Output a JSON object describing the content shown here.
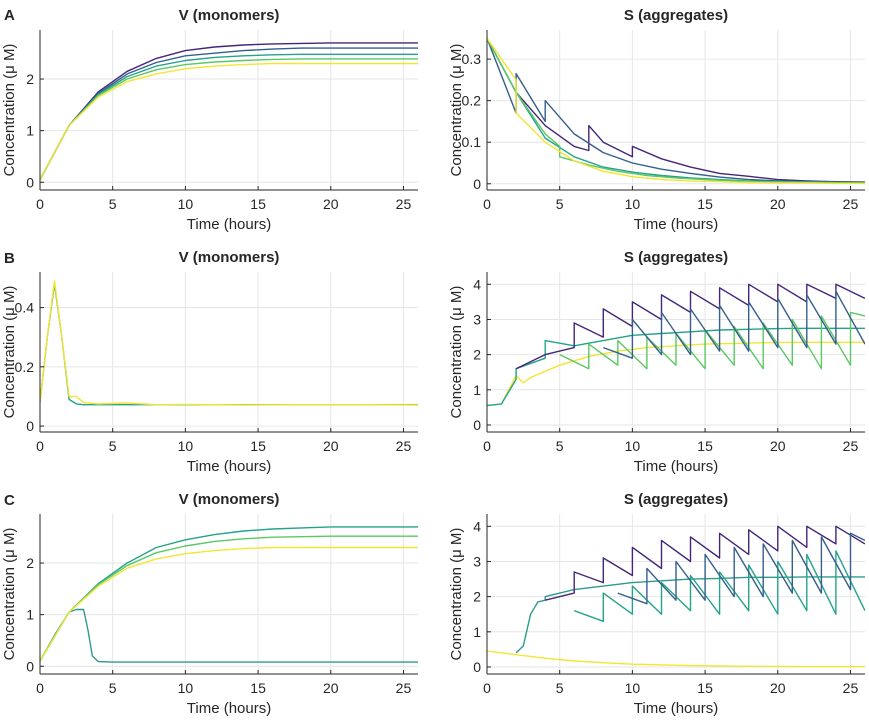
{
  "panel_letters": [
    "A",
    "B",
    "C"
  ],
  "colors": {
    "yellow": "#f2e533",
    "teal": "#24a38a",
    "seagreen": "#2d9b8c",
    "blue": "#355f8d",
    "purple": "#44257a",
    "green": "#5cc863"
  },
  "chart_data": [
    {
      "panel": "A",
      "type": "line",
      "title": "V (monomers)",
      "xlabel": "Time (hours)",
      "ylabel": "Concentration (μ M)",
      "xlim": [
        0,
        26
      ],
      "ylim": [
        -0.15,
        2.95
      ],
      "xticks": [
        0,
        5,
        10,
        15,
        20,
        25
      ],
      "yticks": [
        0,
        1,
        2
      ],
      "grid": true,
      "series": [
        {
          "color": "#44257a",
          "x": [
            0,
            2,
            4,
            6,
            8,
            10,
            12,
            14,
            16,
            18,
            20,
            22,
            24,
            26
          ],
          "y": [
            0.05,
            1.1,
            1.75,
            2.15,
            2.4,
            2.55,
            2.62,
            2.66,
            2.68,
            2.69,
            2.7,
            2.7,
            2.7,
            2.7
          ]
        },
        {
          "color": "#355f8d",
          "x": [
            0,
            2,
            4,
            6,
            8,
            10,
            12,
            14,
            16,
            18,
            20,
            22,
            24,
            26
          ],
          "y": [
            0.05,
            1.1,
            1.72,
            2.1,
            2.32,
            2.45,
            2.5,
            2.55,
            2.58,
            2.6,
            2.6,
            2.6,
            2.6,
            2.6
          ]
        },
        {
          "color": "#24a38a",
          "x": [
            0,
            2,
            4,
            6,
            8,
            10,
            12,
            14,
            16,
            18,
            20,
            22,
            24,
            26
          ],
          "y": [
            0.05,
            1.1,
            1.7,
            2.05,
            2.25,
            2.36,
            2.42,
            2.45,
            2.47,
            2.48,
            2.48,
            2.48,
            2.48,
            2.48
          ]
        },
        {
          "color": "#5cc863",
          "x": [
            0,
            2,
            4,
            6,
            8,
            10,
            12,
            14,
            16,
            18,
            20,
            22,
            24,
            26
          ],
          "y": [
            0.05,
            1.1,
            1.68,
            2.0,
            2.18,
            2.28,
            2.33,
            2.36,
            2.38,
            2.39,
            2.39,
            2.39,
            2.39,
            2.39
          ]
        },
        {
          "color": "#f2e533",
          "x": [
            0,
            2,
            4,
            6,
            8,
            10,
            12,
            14,
            16,
            18,
            20,
            22,
            24,
            26
          ],
          "y": [
            0.05,
            1.1,
            1.65,
            1.95,
            2.1,
            2.2,
            2.25,
            2.28,
            2.3,
            2.3,
            2.3,
            2.3,
            2.3,
            2.3
          ]
        }
      ]
    },
    {
      "panel": "A",
      "type": "line",
      "title": "S (aggregates)",
      "xlabel": "Time (hours)",
      "ylabel": "Concentration (μ M)",
      "xlim": [
        0,
        26
      ],
      "ylim": [
        -0.015,
        0.37
      ],
      "xticks": [
        0,
        5,
        10,
        15,
        20,
        25
      ],
      "yticks": [
        0,
        0.1,
        0.2,
        0.3
      ],
      "grid": true,
      "series": [
        {
          "color": "#44257a",
          "x": [
            0,
            2,
            4,
            6,
            7,
            7,
            8,
            10,
            10,
            12,
            14,
            16,
            18,
            20,
            22,
            24,
            26
          ],
          "y": [
            0.35,
            0.22,
            0.14,
            0.09,
            0.08,
            0.14,
            0.1,
            0.065,
            0.09,
            0.06,
            0.04,
            0.025,
            0.018,
            0.01,
            0.007,
            0.005,
            0.004
          ]
        },
        {
          "color": "#355f8d",
          "x": [
            0,
            2,
            2,
            4,
            4,
            6,
            8,
            10,
            12,
            14,
            16,
            18,
            20,
            22,
            24,
            26
          ],
          "y": [
            0.35,
            0.17,
            0.265,
            0.15,
            0.2,
            0.12,
            0.075,
            0.05,
            0.035,
            0.025,
            0.016,
            0.01,
            0.007,
            0.005,
            0.004,
            0.003
          ]
        },
        {
          "color": "#24a38a",
          "x": [
            0,
            2,
            4,
            6,
            8,
            10,
            12,
            14,
            16,
            18,
            20,
            22,
            24,
            26
          ],
          "y": [
            0.35,
            0.22,
            0.11,
            0.065,
            0.04,
            0.028,
            0.02,
            0.014,
            0.01,
            0.007,
            0.005,
            0.004,
            0.003,
            0.002
          ]
        },
        {
          "color": "#5cc863",
          "x": [
            0,
            2,
            4,
            5,
            5,
            7,
            9,
            11,
            13,
            15,
            17,
            19,
            21,
            23,
            26
          ],
          "y": [
            0.35,
            0.22,
            0.12,
            0.09,
            0.065,
            0.045,
            0.03,
            0.02,
            0.014,
            0.01,
            0.007,
            0.005,
            0.004,
            0.003,
            0.002
          ]
        },
        {
          "color": "#f2e533",
          "x": [
            0,
            2,
            2,
            4,
            6,
            8,
            10,
            12,
            14,
            16,
            18,
            20,
            22,
            24,
            26
          ],
          "y": [
            0.35,
            0.25,
            0.17,
            0.1,
            0.055,
            0.03,
            0.017,
            0.01,
            0.007,
            0.005,
            0.003,
            0.002,
            0.002,
            0.001,
            0.001
          ]
        }
      ]
    },
    {
      "panel": "B",
      "type": "line",
      "title": "V (monomers)",
      "xlabel": "Time (hours)",
      "ylabel": "Concentration (μ M)",
      "xlim": [
        0,
        26
      ],
      "ylim": [
        -0.02,
        0.52
      ],
      "xticks": [
        0,
        5,
        10,
        15,
        20,
        25
      ],
      "yticks": [
        0,
        0.2,
        0.4
      ],
      "grid": true,
      "series": [
        {
          "color": "#24a38a",
          "x": [
            0,
            0.5,
            1,
            1.5,
            2,
            2.5,
            3,
            4,
            6,
            8,
            10,
            14,
            18,
            22,
            26
          ],
          "y": [
            0.08,
            0.3,
            0.48,
            0.3,
            0.09,
            0.075,
            0.072,
            0.072,
            0.072,
            0.072,
            0.072,
            0.072,
            0.072,
            0.072,
            0.072
          ]
        },
        {
          "color": "#f2e533",
          "x": [
            0,
            0.5,
            1,
            1.5,
            2,
            2.5,
            3,
            4,
            6,
            8,
            10,
            14,
            18,
            22,
            26
          ],
          "y": [
            0.08,
            0.3,
            0.49,
            0.3,
            0.1,
            0.1,
            0.08,
            0.075,
            0.078,
            0.072,
            0.073,
            0.071,
            0.072,
            0.072,
            0.071
          ]
        }
      ]
    },
    {
      "panel": "B",
      "type": "line",
      "title": "S (aggregates)",
      "xlabel": "Time (hours)",
      "ylabel": "Concentration (μ M)",
      "xlim": [
        0,
        26
      ],
      "ylim": [
        -0.2,
        4.35
      ],
      "xticks": [
        0,
        5,
        10,
        15,
        20,
        25
      ],
      "yticks": [
        0,
        1,
        2,
        3,
        4
      ],
      "grid": true,
      "series": [
        {
          "color": "#f2e533",
          "x": [
            0,
            1,
            1.5,
            2,
            2.5,
            3,
            5,
            7,
            9,
            11,
            13,
            15,
            17,
            19,
            21,
            23,
            26
          ],
          "y": [
            0.55,
            0.6,
            1.0,
            1.4,
            1.2,
            1.35,
            1.7,
            1.95,
            2.1,
            2.2,
            2.25,
            2.3,
            2.32,
            2.34,
            2.35,
            2.35,
            2.35
          ]
        },
        {
          "color": "#24a38a",
          "x": [
            0,
            1,
            2,
            2,
            4,
            4,
            6,
            8,
            10,
            12,
            14,
            16,
            18,
            20,
            22,
            24,
            26
          ],
          "y": [
            0.55,
            0.6,
            1.3,
            1.6,
            1.9,
            2.4,
            2.25,
            2.4,
            2.55,
            2.6,
            2.65,
            2.7,
            2.72,
            2.74,
            2.75,
            2.75,
            2.75
          ]
        },
        {
          "color": "#44257a",
          "x": [
            2,
            4,
            6,
            6,
            8,
            8,
            10,
            10,
            12,
            12,
            14,
            14,
            16,
            16,
            18,
            18,
            20,
            20,
            22,
            22,
            24,
            24,
            26
          ],
          "y": [
            1.6,
            2.0,
            2.2,
            2.9,
            2.5,
            3.3,
            2.8,
            3.5,
            3.0,
            3.7,
            3.2,
            3.8,
            3.3,
            3.9,
            3.4,
            4.0,
            3.5,
            4.0,
            3.5,
            4.0,
            3.6,
            4.0,
            3.6
          ]
        },
        {
          "color": "#5cc863",
          "x": [
            5,
            7,
            7,
            9,
            9,
            11,
            11,
            13,
            13,
            15,
            15,
            17,
            17,
            19,
            19,
            21,
            21,
            23,
            23,
            25,
            25,
            26
          ],
          "y": [
            2.0,
            1.6,
            2.3,
            1.7,
            2.4,
            1.6,
            2.5,
            1.7,
            2.6,
            1.6,
            2.7,
            1.7,
            2.8,
            1.6,
            2.9,
            1.7,
            3.0,
            1.6,
            3.1,
            1.7,
            3.2,
            3.1
          ]
        },
        {
          "color": "#355f8d",
          "x": [
            8,
            10,
            10,
            12,
            12,
            14,
            14,
            16,
            16,
            18,
            18,
            20,
            20,
            22,
            22,
            24,
            24,
            26
          ],
          "y": [
            2.2,
            1.9,
            3.0,
            2.0,
            3.2,
            2.0,
            3.3,
            2.1,
            3.4,
            2.1,
            3.5,
            2.2,
            3.6,
            2.2,
            3.7,
            2.3,
            3.8,
            2.3
          ]
        }
      ]
    },
    {
      "panel": "C",
      "type": "line",
      "title": "V (monomers)",
      "xlabel": "Time (hours)",
      "ylabel": "Concentration (μ M)",
      "xlim": [
        0,
        26
      ],
      "ylim": [
        -0.15,
        2.95
      ],
      "xticks": [
        0,
        5,
        10,
        15,
        20,
        25
      ],
      "yticks": [
        0,
        1,
        2
      ],
      "grid": true,
      "series": [
        {
          "color": "#2d9b8c",
          "x": [
            0,
            1,
            2,
            2.5,
            3,
            3.3,
            3.6,
            4,
            5,
            8,
            12,
            16,
            20,
            26
          ],
          "y": [
            0.1,
            0.6,
            1.05,
            1.1,
            1.1,
            0.7,
            0.2,
            0.09,
            0.08,
            0.08,
            0.08,
            0.08,
            0.08,
            0.08
          ]
        },
        {
          "color": "#24a38a",
          "x": [
            0,
            2,
            4,
            6,
            8,
            10,
            12,
            14,
            16,
            18,
            20,
            22,
            24,
            26
          ],
          "y": [
            0.1,
            1.05,
            1.6,
            2.0,
            2.3,
            2.45,
            2.55,
            2.62,
            2.66,
            2.68,
            2.7,
            2.7,
            2.7,
            2.7
          ]
        },
        {
          "color": "#5cc863",
          "x": [
            0,
            2,
            4,
            6,
            8,
            10,
            12,
            14,
            16,
            18,
            20,
            22,
            24,
            26
          ],
          "y": [
            0.1,
            1.05,
            1.58,
            1.95,
            2.2,
            2.33,
            2.42,
            2.47,
            2.5,
            2.51,
            2.52,
            2.52,
            2.52,
            2.52
          ]
        },
        {
          "color": "#f2e533",
          "x": [
            0,
            2,
            4,
            6,
            8,
            10,
            12,
            14,
            16,
            18,
            20,
            22,
            24,
            26
          ],
          "y": [
            0.1,
            1.05,
            1.55,
            1.9,
            2.08,
            2.18,
            2.24,
            2.28,
            2.3,
            2.3,
            2.3,
            2.3,
            2.3,
            2.3
          ]
        }
      ]
    },
    {
      "panel": "C",
      "type": "line",
      "title": "S (aggregates)",
      "xlabel": "Time (hours)",
      "ylabel": "Concentration (μ M)",
      "xlim": [
        0,
        26
      ],
      "ylim": [
        -0.2,
        4.35
      ],
      "xticks": [
        0,
        5,
        10,
        15,
        20,
        25
      ],
      "yticks": [
        0,
        1,
        2,
        3,
        4
      ],
      "grid": true,
      "series": [
        {
          "color": "#f2e533",
          "x": [
            0,
            2,
            4,
            6,
            8,
            10,
            12,
            14,
            16,
            18,
            20,
            22,
            24,
            26
          ],
          "y": [
            0.45,
            0.35,
            0.25,
            0.17,
            0.12,
            0.08,
            0.06,
            0.04,
            0.03,
            0.02,
            0.015,
            0.01,
            0.01,
            0.01
          ]
        },
        {
          "color": "#2d9b8c",
          "x": [
            2,
            2.5,
            3,
            3.5,
            4,
            4,
            6,
            8,
            10,
            12,
            14,
            16,
            18,
            20,
            22,
            24,
            26
          ],
          "y": [
            0.4,
            0.6,
            1.5,
            1.85,
            1.9,
            2.0,
            2.2,
            2.3,
            2.4,
            2.45,
            2.5,
            2.52,
            2.55,
            2.55,
            2.56,
            2.56,
            2.56
          ]
        },
        {
          "color": "#44257a",
          "x": [
            4,
            6,
            6,
            8,
            8,
            10,
            10,
            12,
            12,
            14,
            14,
            16,
            16,
            18,
            18,
            20,
            20,
            22,
            22,
            24,
            24,
            26
          ],
          "y": [
            1.9,
            2.1,
            2.7,
            2.4,
            3.1,
            2.6,
            3.4,
            2.8,
            3.6,
            3.0,
            3.7,
            3.1,
            3.8,
            3.2,
            3.9,
            3.3,
            4.0,
            3.4,
            4.0,
            3.5,
            4.0,
            3.5
          ]
        },
        {
          "color": "#24a38a",
          "x": [
            6,
            8,
            8,
            10,
            10,
            12,
            12,
            14,
            14,
            16,
            16,
            18,
            18,
            20,
            20,
            22,
            22,
            24,
            24,
            26
          ],
          "y": [
            1.6,
            1.3,
            2.1,
            1.5,
            2.3,
            1.5,
            2.4,
            1.6,
            2.6,
            1.5,
            2.7,
            1.6,
            2.9,
            1.5,
            3.0,
            1.6,
            3.2,
            1.5,
            3.3,
            1.6
          ]
        },
        {
          "color": "#355f8d",
          "x": [
            9,
            11,
            11,
            13,
            13,
            15,
            15,
            17,
            17,
            19,
            19,
            21,
            21,
            23,
            23,
            25,
            25,
            26
          ],
          "y": [
            2.1,
            1.8,
            2.8,
            1.9,
            3.0,
            1.9,
            3.2,
            2.0,
            3.4,
            2.0,
            3.5,
            2.1,
            3.6,
            2.1,
            3.7,
            2.2,
            3.8,
            3.6
          ]
        }
      ]
    }
  ]
}
